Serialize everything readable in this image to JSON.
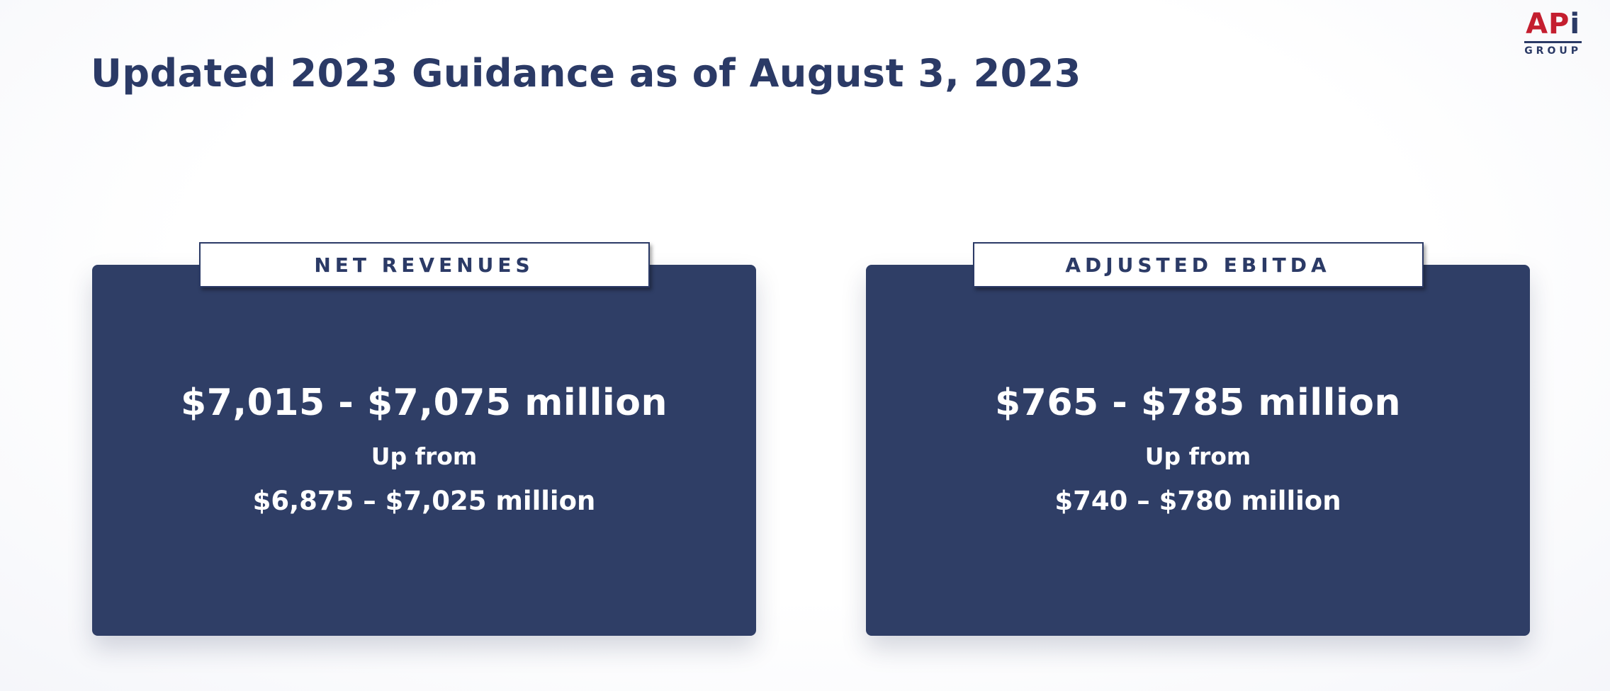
{
  "title": "Updated 2023 Guidance as of August 3, 2023",
  "logo": {
    "brand_ap": "AP",
    "brand_i": "i",
    "sub": "GROUP"
  },
  "cards": [
    {
      "label": "NET REVENUES",
      "range": "$7,015 - $7,075 million",
      "up_from": "Up from",
      "previous_range": "$6,875 – $7,025 million"
    },
    {
      "label": "ADJUSTED EBITDA",
      "range": "$765 - $785 million",
      "up_from": "Up from",
      "previous_range": "$740 – $780 million"
    }
  ],
  "colors": {
    "navy_text": "#2b3a66",
    "card_navy": "#2f3e66",
    "brand_red": "#c41e2f",
    "white": "#ffffff"
  }
}
